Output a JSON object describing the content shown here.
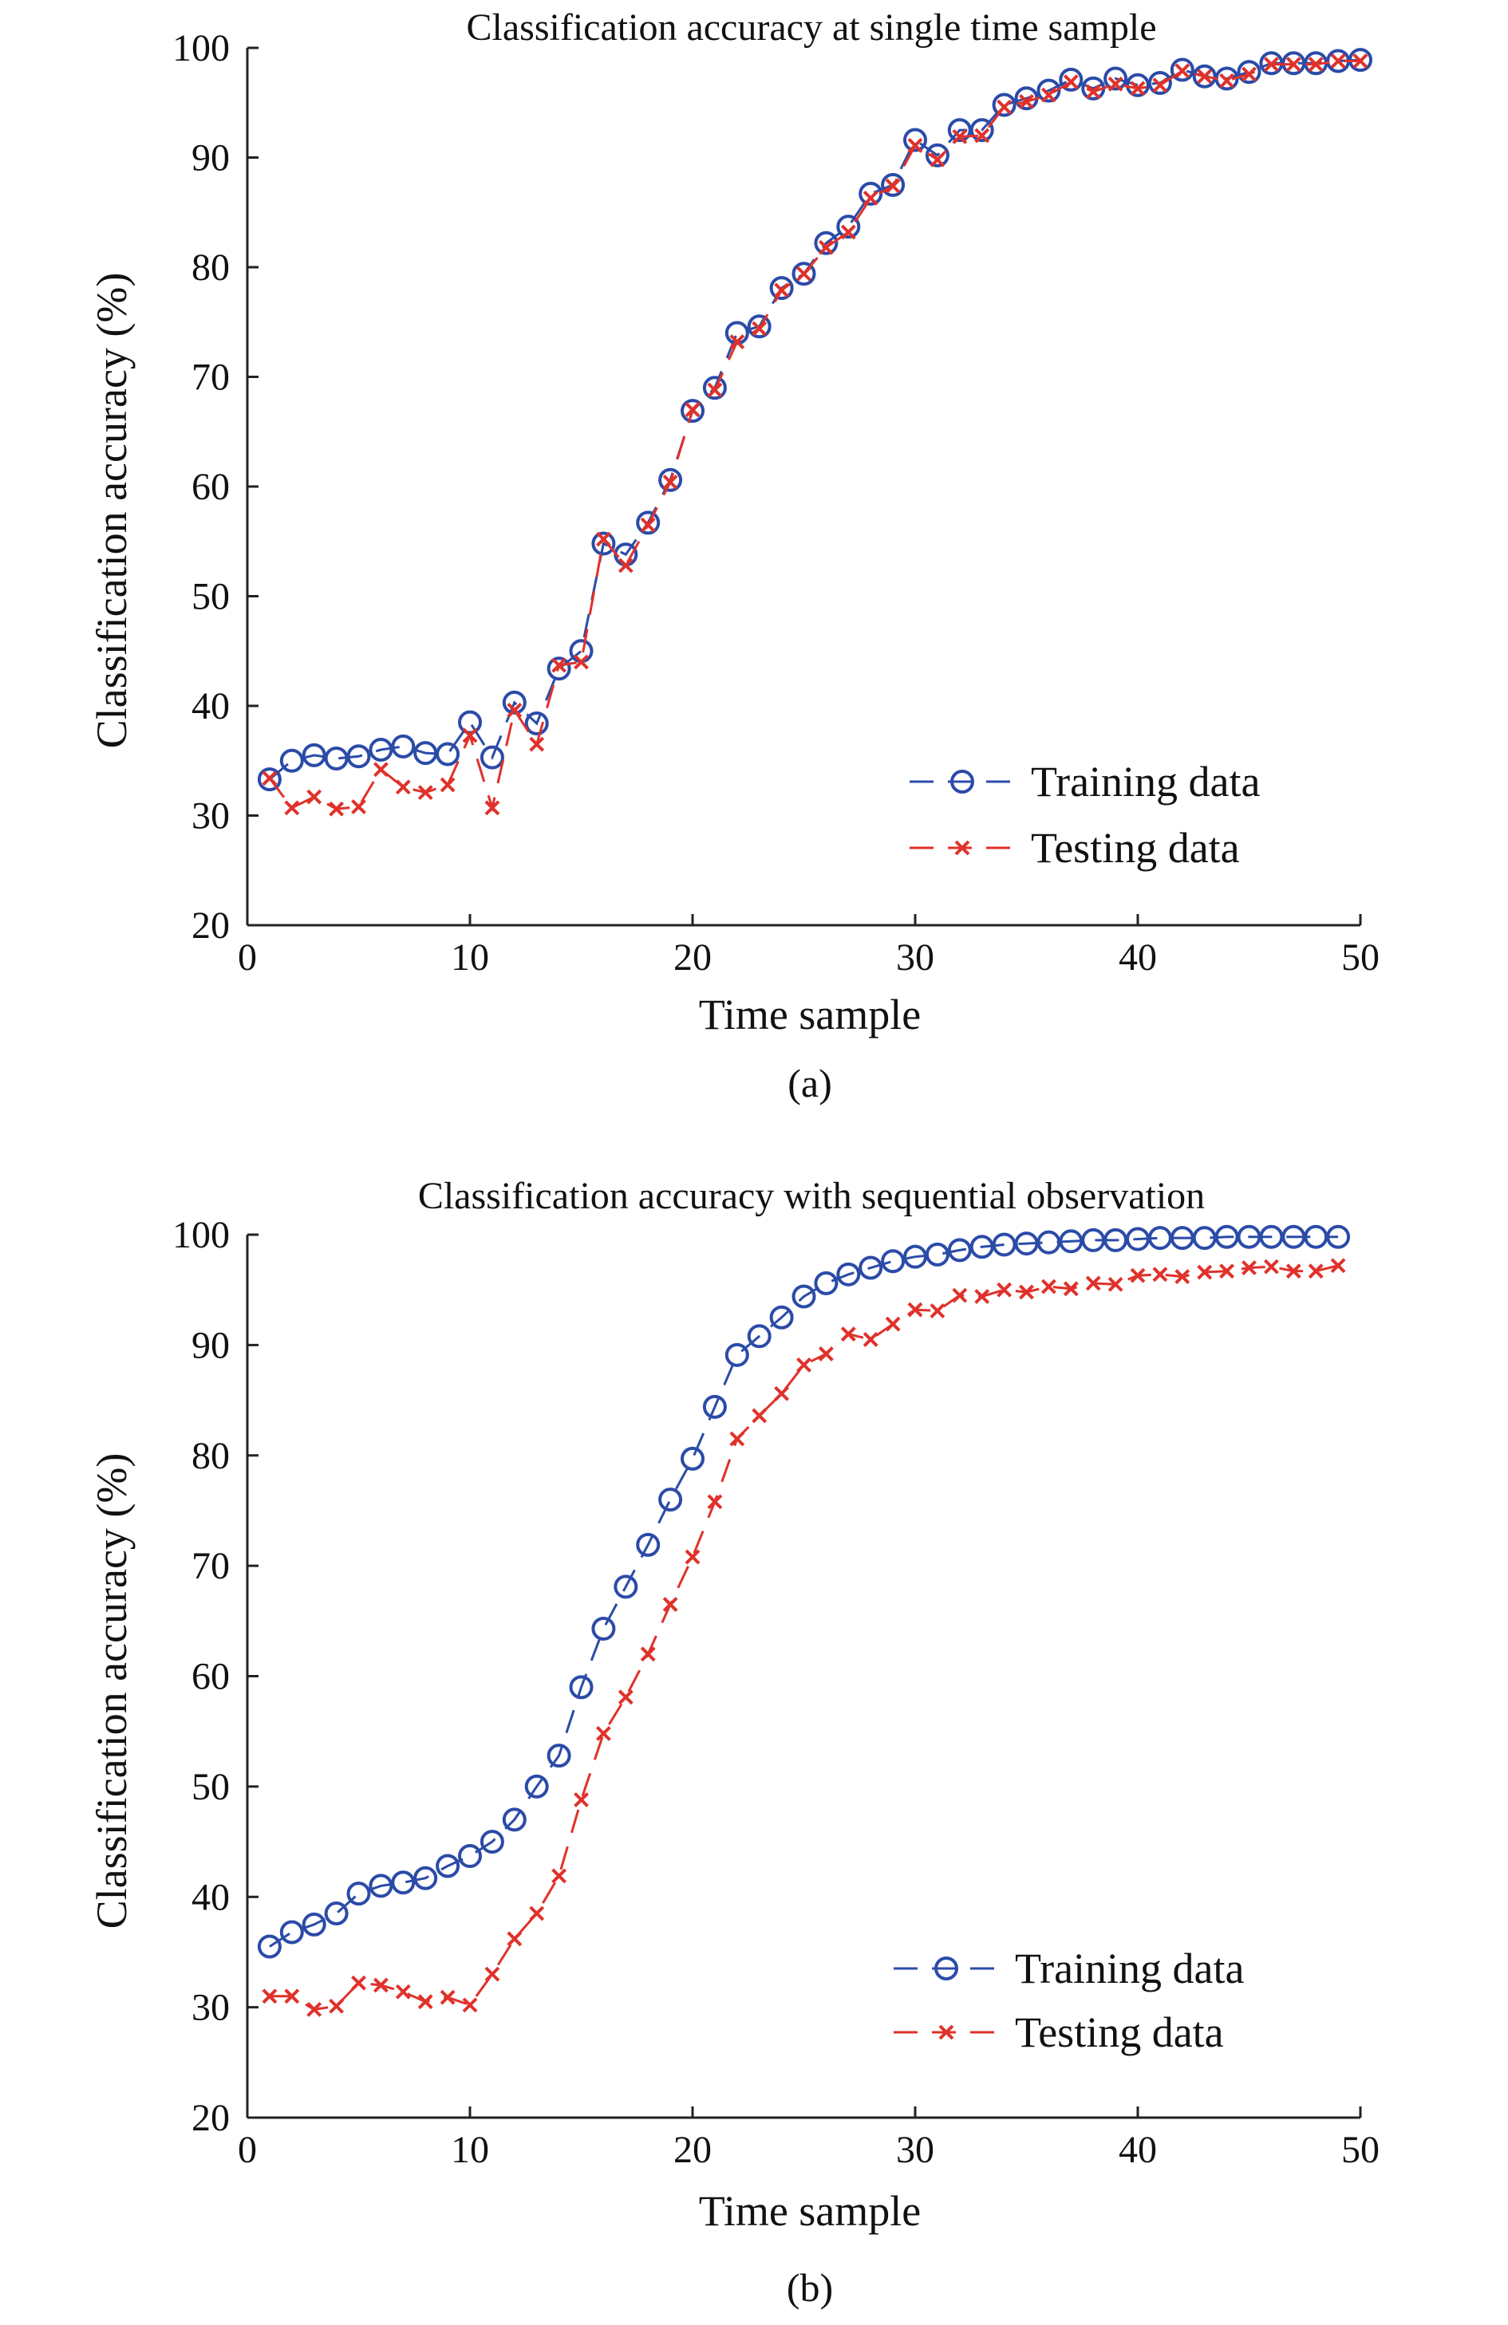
{
  "figure": {
    "panel_a_label": "(a)",
    "panel_b_label": "(b)"
  },
  "chart_data": [
    {
      "type": "line",
      "title": "Classification accuracy at single time sample",
      "xlabel": "Time sample",
      "ylabel": "Classification accuracy (%)",
      "xlim": [
        0,
        50
      ],
      "ylim": [
        20,
        100
      ],
      "xticks": [
        0,
        10,
        20,
        30,
        40,
        50
      ],
      "yticks": [
        20,
        30,
        40,
        50,
        60,
        70,
        80,
        90,
        100
      ],
      "grid": false,
      "legend_position": "bottom-right",
      "x": [
        1,
        2,
        3,
        4,
        5,
        6,
        7,
        8,
        9,
        10,
        11,
        12,
        13,
        14,
        15,
        16,
        17,
        18,
        19,
        20,
        21,
        22,
        23,
        24,
        25,
        26,
        27,
        28,
        29,
        30,
        31,
        32,
        33,
        34,
        35,
        36,
        37,
        38,
        39,
        40,
        41,
        42,
        43,
        44,
        45,
        46,
        47,
        48,
        49,
        50
      ],
      "series": [
        {
          "name": "Training data",
          "color": "#2B4BA8",
          "marker": "circle",
          "values": [
            33.3,
            35.0,
            35.5,
            35.2,
            35.4,
            36.0,
            36.3,
            35.7,
            35.6,
            38.5,
            35.3,
            40.3,
            38.4,
            43.4,
            45.0,
            54.8,
            53.8,
            56.7,
            60.6,
            66.9,
            69.0,
            74.0,
            74.6,
            78.1,
            79.4,
            82.2,
            83.7,
            86.7,
            87.5,
            91.6,
            90.2,
            92.5,
            92.5,
            94.8,
            95.4,
            96.1,
            97.1,
            96.3,
            97.2,
            96.6,
            96.8,
            98.0,
            97.4,
            97.2,
            97.8,
            98.6,
            98.6,
            98.6,
            98.8,
            98.9
          ]
        },
        {
          "name": "Testing data",
          "color": "#E0312A",
          "marker": "x",
          "values": [
            33.4,
            30.7,
            31.7,
            30.6,
            30.8,
            34.2,
            32.6,
            32.1,
            32.8,
            37.3,
            30.7,
            39.6,
            36.5,
            43.7,
            44.0,
            55.2,
            52.8,
            56.5,
            60.4,
            67.0,
            68.8,
            73.2,
            74.4,
            77.9,
            79.4,
            81.8,
            83.2,
            86.3,
            87.4,
            91.1,
            89.8,
            91.9,
            92.0,
            94.6,
            95.1,
            95.7,
            96.9,
            96.0,
            96.7,
            96.3,
            96.6,
            97.9,
            97.4,
            97.0,
            97.6,
            98.5,
            98.5,
            98.5,
            98.8,
            98.8
          ]
        }
      ]
    },
    {
      "type": "line",
      "title": "Classification accuracy with sequential observation",
      "xlabel": "Time sample",
      "ylabel": "Classification accuracy (%)",
      "xlim": [
        0,
        50
      ],
      "ylim": [
        20,
        100
      ],
      "xticks": [
        0,
        10,
        20,
        30,
        40,
        50
      ],
      "yticks": [
        20,
        30,
        40,
        50,
        60,
        70,
        80,
        90,
        100
      ],
      "grid": false,
      "legend_position": "bottom-right",
      "x": [
        1,
        2,
        3,
        4,
        5,
        6,
        7,
        8,
        9,
        10,
        11,
        12,
        13,
        14,
        15,
        16,
        17,
        18,
        19,
        20,
        21,
        22,
        23,
        24,
        25,
        26,
        27,
        28,
        29,
        30,
        31,
        32,
        33,
        34,
        35,
        36,
        37,
        38,
        39,
        40,
        41,
        42,
        43,
        44,
        45,
        46,
        47,
        48,
        49
      ],
      "series": [
        {
          "name": "Training data",
          "color": "#2B4BA8",
          "marker": "circle",
          "values": [
            35.5,
            36.8,
            37.5,
            38.5,
            40.3,
            41.0,
            41.3,
            41.7,
            42.8,
            43.7,
            45.0,
            47.0,
            50.0,
            52.8,
            59.0,
            64.3,
            68.1,
            71.9,
            76.0,
            79.7,
            84.4,
            89.1,
            90.8,
            92.5,
            94.4,
            95.6,
            96.4,
            97.0,
            97.6,
            98.0,
            98.2,
            98.6,
            98.9,
            99.1,
            99.2,
            99.3,
            99.4,
            99.5,
            99.5,
            99.6,
            99.7,
            99.7,
            99.7,
            99.8,
            99.8,
            99.8,
            99.8,
            99.8,
            99.8
          ]
        },
        {
          "name": "Testing data",
          "color": "#E0312A",
          "marker": "x",
          "values": [
            31.0,
            31.0,
            29.8,
            30.1,
            32.2,
            32.0,
            31.4,
            30.5,
            30.9,
            30.2,
            33.0,
            36.2,
            38.5,
            41.9,
            48.8,
            54.8,
            58.1,
            62.0,
            66.5,
            70.8,
            75.8,
            81.5,
            83.6,
            85.6,
            88.2,
            89.2,
            91.0,
            90.5,
            91.9,
            93.2,
            93.1,
            94.5,
            94.4,
            95.0,
            94.8,
            95.3,
            95.1,
            95.6,
            95.5,
            96.3,
            96.4,
            96.2,
            96.6,
            96.7,
            97.0,
            97.1,
            96.7,
            96.7,
            97.2
          ]
        }
      ]
    }
  ]
}
